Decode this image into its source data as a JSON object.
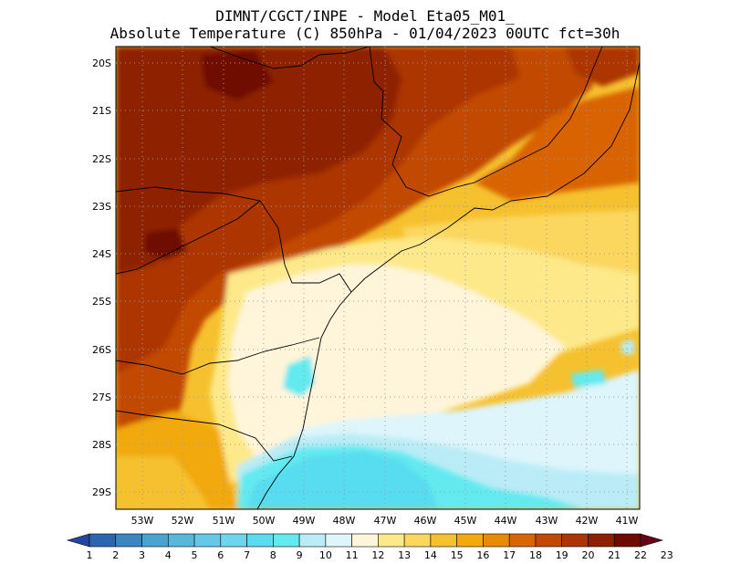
{
  "header": {
    "line1": "DIMNT/CGCT/INPE -  Model Eta05_M01_",
    "line2": "Absolute Temperature (C) 850hPa -  01/04/2023 00UTC fct=30h"
  },
  "map": {
    "lat_labels": [
      "20S",
      "21S",
      "22S",
      "23S",
      "24S",
      "25S",
      "26S",
      "27S",
      "28S",
      "29S"
    ],
    "lon_labels": [
      "53W",
      "52W",
      "51W",
      "50W",
      "49W",
      "48W",
      "47W",
      "46W",
      "45W",
      "44W",
      "43W",
      "42W",
      "41W"
    ],
    "grid": "dotted"
  },
  "colorbar": {
    "labels": [
      "1",
      "2",
      "3",
      "4",
      "5",
      "6",
      "7",
      "8",
      "9",
      "10",
      "11",
      "12",
      "13",
      "14",
      "15",
      "16",
      "17",
      "18",
      "19",
      "20",
      "21",
      "22",
      "23"
    ],
    "colors": [
      "#23479e",
      "#2c66af",
      "#3b86c0",
      "#4ba3d0",
      "#57b8dc",
      "#65c8e6",
      "#6fd5ee",
      "#59dcef",
      "#62eaf0",
      "#b9ecf6",
      "#ddf5fb",
      "#fff5da",
      "#fde98a",
      "#fbd760",
      "#f6c12e",
      "#f1a90b",
      "#e78b07",
      "#d96405",
      "#c24806",
      "#ac3405",
      "#8e2004",
      "#6e0c04",
      "#680018"
    ]
  }
}
